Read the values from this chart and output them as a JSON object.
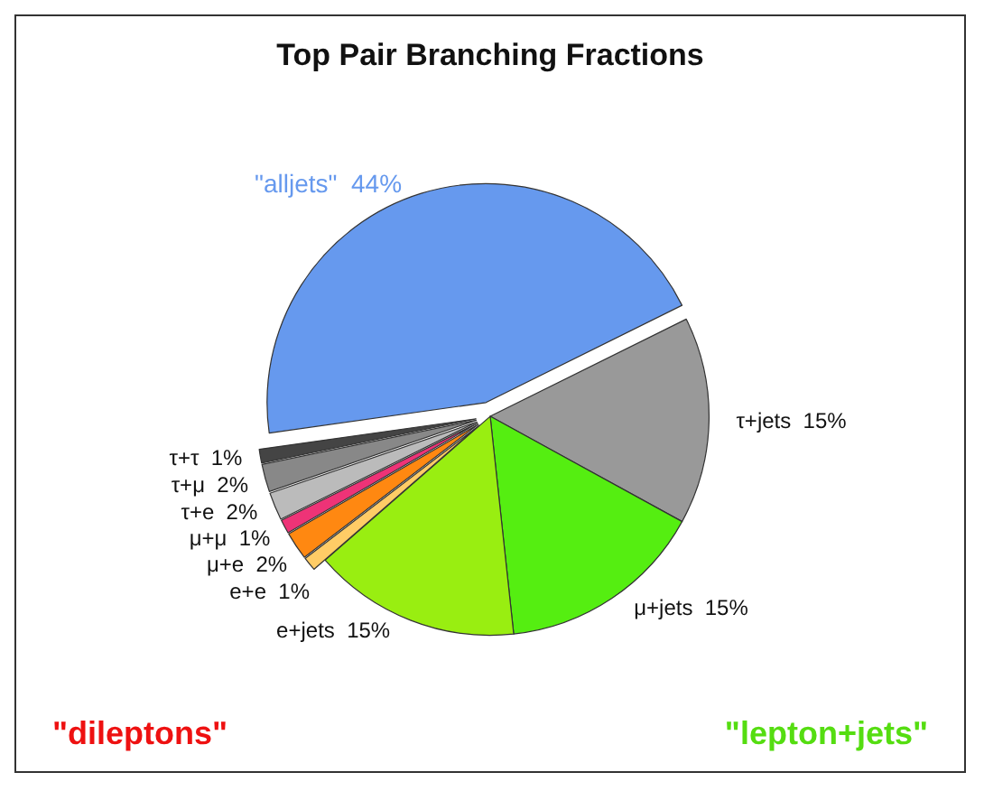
{
  "chart_data": {
    "type": "pie",
    "title": "Top Pair Branching Fractions",
    "categories": [
      "\"alljets\"",
      "τ+jets",
      "μ+jets",
      "e+jets",
      "e+e",
      "μ+e",
      "μ+μ",
      "τ+e",
      "τ+μ",
      "τ+τ"
    ],
    "values": [
      44,
      15,
      15,
      15,
      1,
      2,
      1,
      2,
      2,
      1
    ],
    "value_labels": [
      "44%",
      "15%",
      "15%",
      "15%",
      "1%",
      "2%",
      "1%",
      "2%",
      "2%",
      "1%"
    ],
    "colors": [
      "#6699ee",
      "#999999",
      "#55ee11",
      "#99ee11",
      "#ffcc66",
      "#ff8811",
      "#ee3377",
      "#bbbbbb",
      "#888888",
      "#444444"
    ],
    "annotations": [
      "\"dileptons\"",
      "\"lepton+jets\""
    ],
    "legend": false
  }
}
